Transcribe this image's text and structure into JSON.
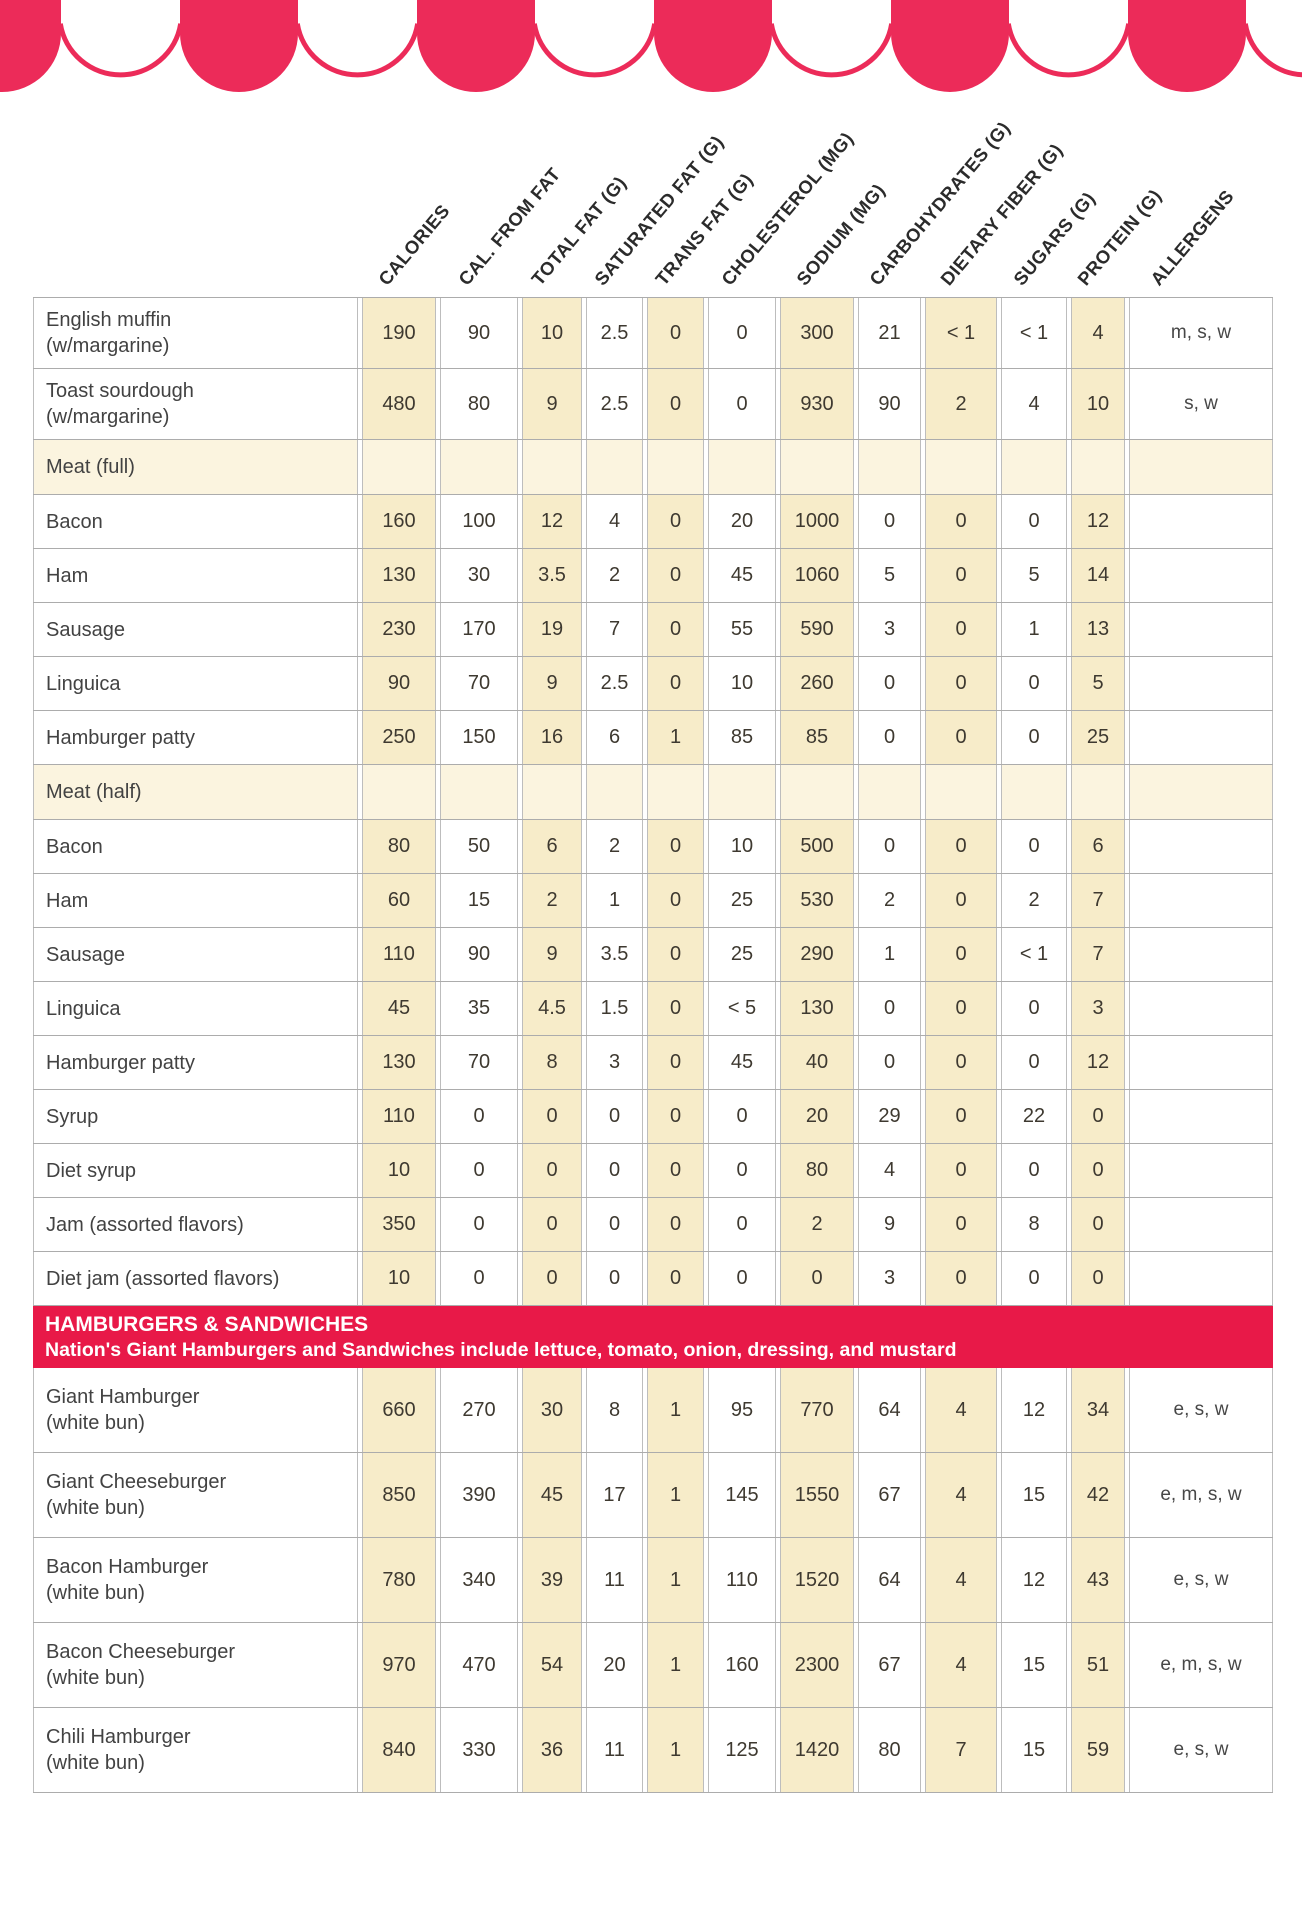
{
  "colors": {
    "awning_red": "#EC2B59",
    "band_red": "#E81948",
    "cream": "#F7ECC9",
    "section_cream": "#FBF4DF",
    "border_h": "#ACACAC",
    "border_v": "#BDBDBD",
    "text": "#3E3930",
    "page_bg": "#FFFFFF"
  },
  "table": {
    "columns": [
      "CALORIES",
      "CAL. FROM FAT",
      "TOTAL FAT (G)",
      "SATURATED FAT (G)",
      "TRANS FAT (G)",
      "CHOLESTEROL (MG)",
      "SODIUM (MG)",
      "CARBOHYDRATES (G)",
      "DIETARY FIBER (G)",
      "SUGARS (G)",
      "PROTEIN (G)",
      "ALLERGENS"
    ],
    "banner": {
      "title": "HAMBURGERS & SANDWICHES",
      "subtitle": "Nation's Giant Hamburgers and Sandwiches include lettuce, tomato, onion, dressing, and mustard"
    },
    "rows": [
      {
        "type": "item",
        "size": "tall",
        "line1": "English muffin",
        "line2": "(w/margarine)",
        "values": [
          "190",
          "90",
          "10",
          "2.5",
          "0",
          "0",
          "300",
          "21",
          "< 1",
          "< 1",
          "4"
        ],
        "allergens": "m, s, w"
      },
      {
        "type": "item",
        "size": "tall",
        "line1": "Toast sourdough",
        "line2": "(w/margarine)",
        "values": [
          "480",
          "80",
          "9",
          "2.5",
          "0",
          "0",
          "930",
          "90",
          "2",
          "4",
          "10"
        ],
        "allergens": "s, w"
      },
      {
        "type": "section",
        "label": "Meat (full)"
      },
      {
        "type": "item",
        "size": "single",
        "line1": "Bacon",
        "values": [
          "160",
          "100",
          "12",
          "4",
          "0",
          "20",
          "1000",
          "0",
          "0",
          "0",
          "12"
        ],
        "allergens": ""
      },
      {
        "type": "item",
        "size": "single",
        "line1": "Ham",
        "values": [
          "130",
          "30",
          "3.5",
          "2",
          "0",
          "45",
          "1060",
          "5",
          "0",
          "5",
          "14"
        ],
        "allergens": ""
      },
      {
        "type": "item",
        "size": "single",
        "line1": "Sausage",
        "values": [
          "230",
          "170",
          "19",
          "7",
          "0",
          "55",
          "590",
          "3",
          "0",
          "1",
          "13"
        ],
        "allergens": ""
      },
      {
        "type": "item",
        "size": "single",
        "line1": "Linguica",
        "values": [
          "90",
          "70",
          "9",
          "2.5",
          "0",
          "10",
          "260",
          "0",
          "0",
          "0",
          "5"
        ],
        "allergens": ""
      },
      {
        "type": "item",
        "size": "single",
        "line1": "Hamburger patty",
        "values": [
          "250",
          "150",
          "16",
          "6",
          "1",
          "85",
          "85",
          "0",
          "0",
          "0",
          "25"
        ],
        "allergens": ""
      },
      {
        "type": "section",
        "label": "Meat (half)"
      },
      {
        "type": "item",
        "size": "single",
        "line1": "Bacon",
        "values": [
          "80",
          "50",
          "6",
          "2",
          "0",
          "10",
          "500",
          "0",
          "0",
          "0",
          "6"
        ],
        "allergens": ""
      },
      {
        "type": "item",
        "size": "single",
        "line1": "Ham",
        "values": [
          "60",
          "15",
          "2",
          "1",
          "0",
          "25",
          "530",
          "2",
          "0",
          "2",
          "7"
        ],
        "allergens": ""
      },
      {
        "type": "item",
        "size": "single",
        "line1": "Sausage",
        "values": [
          "110",
          "90",
          "9",
          "3.5",
          "0",
          "25",
          "290",
          "1",
          "0",
          "< 1",
          "7"
        ],
        "allergens": ""
      },
      {
        "type": "item",
        "size": "single",
        "line1": "Linguica",
        "values": [
          "45",
          "35",
          "4.5",
          "1.5",
          "0",
          "< 5",
          "130",
          "0",
          "0",
          "0",
          "3"
        ],
        "allergens": ""
      },
      {
        "type": "item",
        "size": "single",
        "line1": "Hamburger patty",
        "values": [
          "130",
          "70",
          "8",
          "3",
          "0",
          "45",
          "40",
          "0",
          "0",
          "0",
          "12"
        ],
        "allergens": ""
      },
      {
        "type": "item",
        "size": "single",
        "line1": "Syrup",
        "values": [
          "110",
          "0",
          "0",
          "0",
          "0",
          "0",
          "20",
          "29",
          "0",
          "22",
          "0"
        ],
        "allergens": ""
      },
      {
        "type": "item",
        "size": "single",
        "line1": "Diet syrup",
        "values": [
          "10",
          "0",
          "0",
          "0",
          "0",
          "0",
          "80",
          "4",
          "0",
          "0",
          "0"
        ],
        "allergens": ""
      },
      {
        "type": "item",
        "size": "single",
        "line1": "Jam (assorted flavors)",
        "values": [
          "350",
          "0",
          "0",
          "0",
          "0",
          "0",
          "2",
          "9",
          "0",
          "8",
          "0"
        ],
        "allergens": ""
      },
      {
        "type": "item",
        "size": "single",
        "line1": "Diet jam (assorted flavors)",
        "values": [
          "10",
          "0",
          "0",
          "0",
          "0",
          "0",
          "0",
          "3",
          "0",
          "0",
          "0"
        ],
        "allergens": ""
      },
      {
        "type": "banner"
      },
      {
        "type": "item",
        "size": "burger",
        "line1": "Giant Hamburger",
        "line2": "(white bun)",
        "values": [
          "660",
          "270",
          "30",
          "8",
          "1",
          "95",
          "770",
          "64",
          "4",
          "12",
          "34"
        ],
        "allergens": "e, s, w"
      },
      {
        "type": "item",
        "size": "burger",
        "line1": "Giant Cheeseburger",
        "line2": "(white bun)",
        "values": [
          "850",
          "390",
          "45",
          "17",
          "1",
          "145",
          "1550",
          "67",
          "4",
          "15",
          "42"
        ],
        "allergens": "e, m, s, w"
      },
      {
        "type": "item",
        "size": "burger",
        "line1": "Bacon Hamburger",
        "line2": "(white bun)",
        "values": [
          "780",
          "340",
          "39",
          "11",
          "1",
          "110",
          "1520",
          "64",
          "4",
          "12",
          "43"
        ],
        "allergens": "e, s, w"
      },
      {
        "type": "item",
        "size": "burger",
        "line1": "Bacon Cheeseburger",
        "line2": "(white bun)",
        "values": [
          "970",
          "470",
          "54",
          "20",
          "1",
          "160",
          "2300",
          "67",
          "4",
          "15",
          "51"
        ],
        "allergens": "e, m, s, w"
      },
      {
        "type": "item",
        "size": "burger",
        "line1": "Chili Hamburger",
        "line2": "(white bun)",
        "values": [
          "840",
          "330",
          "36",
          "11",
          "1",
          "125",
          "1420",
          "80",
          "7",
          "15",
          "59"
        ],
        "allergens": "e, s, w"
      }
    ]
  }
}
